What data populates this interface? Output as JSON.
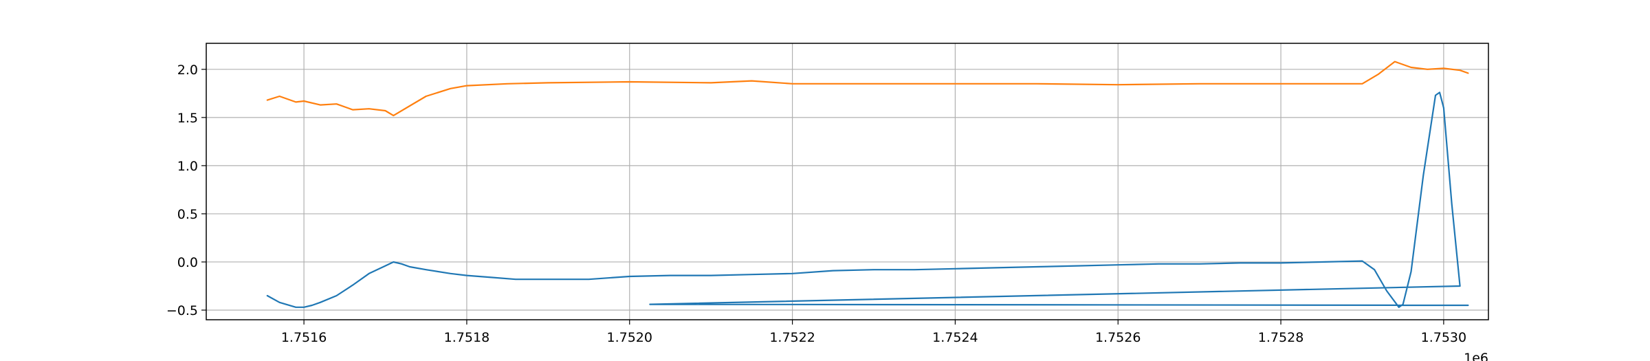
{
  "chart_data": {
    "type": "line",
    "title": "",
    "xlabel": "",
    "ylabel": "",
    "x_offset_label": "1e6",
    "xlim": [
      1.75148,
      1.753055
    ],
    "ylim": [
      -0.6,
      2.27
    ],
    "x_ticks": [
      {
        "value": 1.7516,
        "label": "1.7516"
      },
      {
        "value": 1.7518,
        "label": "1.7518"
      },
      {
        "value": 1.752,
        "label": "1.7520"
      },
      {
        "value": 1.7522,
        "label": "1.7522"
      },
      {
        "value": 1.7524,
        "label": "1.7524"
      },
      {
        "value": 1.7526,
        "label": "1.7526"
      },
      {
        "value": 1.7528,
        "label": "1.7528"
      },
      {
        "value": 1.753,
        "label": "1.7530"
      }
    ],
    "y_ticks": [
      {
        "value": -0.5,
        "label": "−0.5"
      },
      {
        "value": 0.0,
        "label": "0.0"
      },
      {
        "value": 0.5,
        "label": "0.5"
      },
      {
        "value": 1.0,
        "label": "1.0"
      },
      {
        "value": 1.5,
        "label": "1.5"
      },
      {
        "value": 2.0,
        "label": "2.0"
      }
    ],
    "grid": true,
    "legend": "none",
    "series": [
      {
        "color": "#1f77b4",
        "x": [
          1.751555,
          1.75157,
          1.75159,
          1.7516,
          1.75161,
          1.75162,
          1.75164,
          1.75166,
          1.75168,
          1.7517,
          1.75171,
          1.75172,
          1.75173,
          1.75175,
          1.75178,
          1.7518,
          1.75183,
          1.75186,
          1.7519,
          1.75195,
          1.752,
          1.75205,
          1.7521,
          1.75215,
          1.7522,
          1.75225,
          1.7523,
          1.75235,
          1.7524,
          1.75245,
          1.7525,
          1.75255,
          1.7526,
          1.75265,
          1.7527,
          1.75275,
          1.7528,
          1.75285,
          1.7529,
          1.752915,
          1.75293,
          1.752945,
          1.75295,
          1.75296,
          1.752975,
          1.75299,
          1.752995,
          1.753,
          1.75301,
          1.75302,
          1.752025,
          1.75303
        ],
        "y": [
          -0.35,
          -0.42,
          -0.47,
          -0.47,
          -0.45,
          -0.42,
          -0.35,
          -0.24,
          -0.12,
          -0.04,
          0.0,
          -0.02,
          -0.05,
          -0.08,
          -0.12,
          -0.14,
          -0.16,
          -0.18,
          -0.18,
          -0.18,
          -0.15,
          -0.14,
          -0.14,
          -0.13,
          -0.12,
          -0.09,
          -0.08,
          -0.08,
          -0.07,
          -0.06,
          -0.05,
          -0.04,
          -0.03,
          -0.02,
          -0.02,
          -0.01,
          -0.01,
          0.0,
          0.01,
          -0.08,
          -0.3,
          -0.47,
          -0.44,
          -0.1,
          0.9,
          1.73,
          1.76,
          1.6,
          0.6,
          -0.25,
          -0.44,
          -0.45
        ]
      },
      {
        "color": "#ff7f0e",
        "x": [
          1.751555,
          1.75157,
          1.75159,
          1.7516,
          1.75162,
          1.75164,
          1.75166,
          1.75168,
          1.7517,
          1.75171,
          1.75173,
          1.75175,
          1.75178,
          1.7518,
          1.75185,
          1.7519,
          1.752,
          1.7521,
          1.75215,
          1.7522,
          1.7523,
          1.7524,
          1.7525,
          1.7526,
          1.7527,
          1.7528,
          1.7529,
          1.75292,
          1.75294,
          1.75296,
          1.75298,
          1.753,
          1.75302,
          1.75303
        ],
        "y": [
          1.68,
          1.72,
          1.66,
          1.67,
          1.63,
          1.64,
          1.58,
          1.59,
          1.57,
          1.52,
          1.62,
          1.72,
          1.8,
          1.83,
          1.85,
          1.86,
          1.87,
          1.86,
          1.88,
          1.85,
          1.85,
          1.85,
          1.85,
          1.84,
          1.85,
          1.85,
          1.85,
          1.95,
          2.08,
          2.02,
          2.0,
          2.01,
          1.99,
          1.96
        ]
      }
    ]
  }
}
